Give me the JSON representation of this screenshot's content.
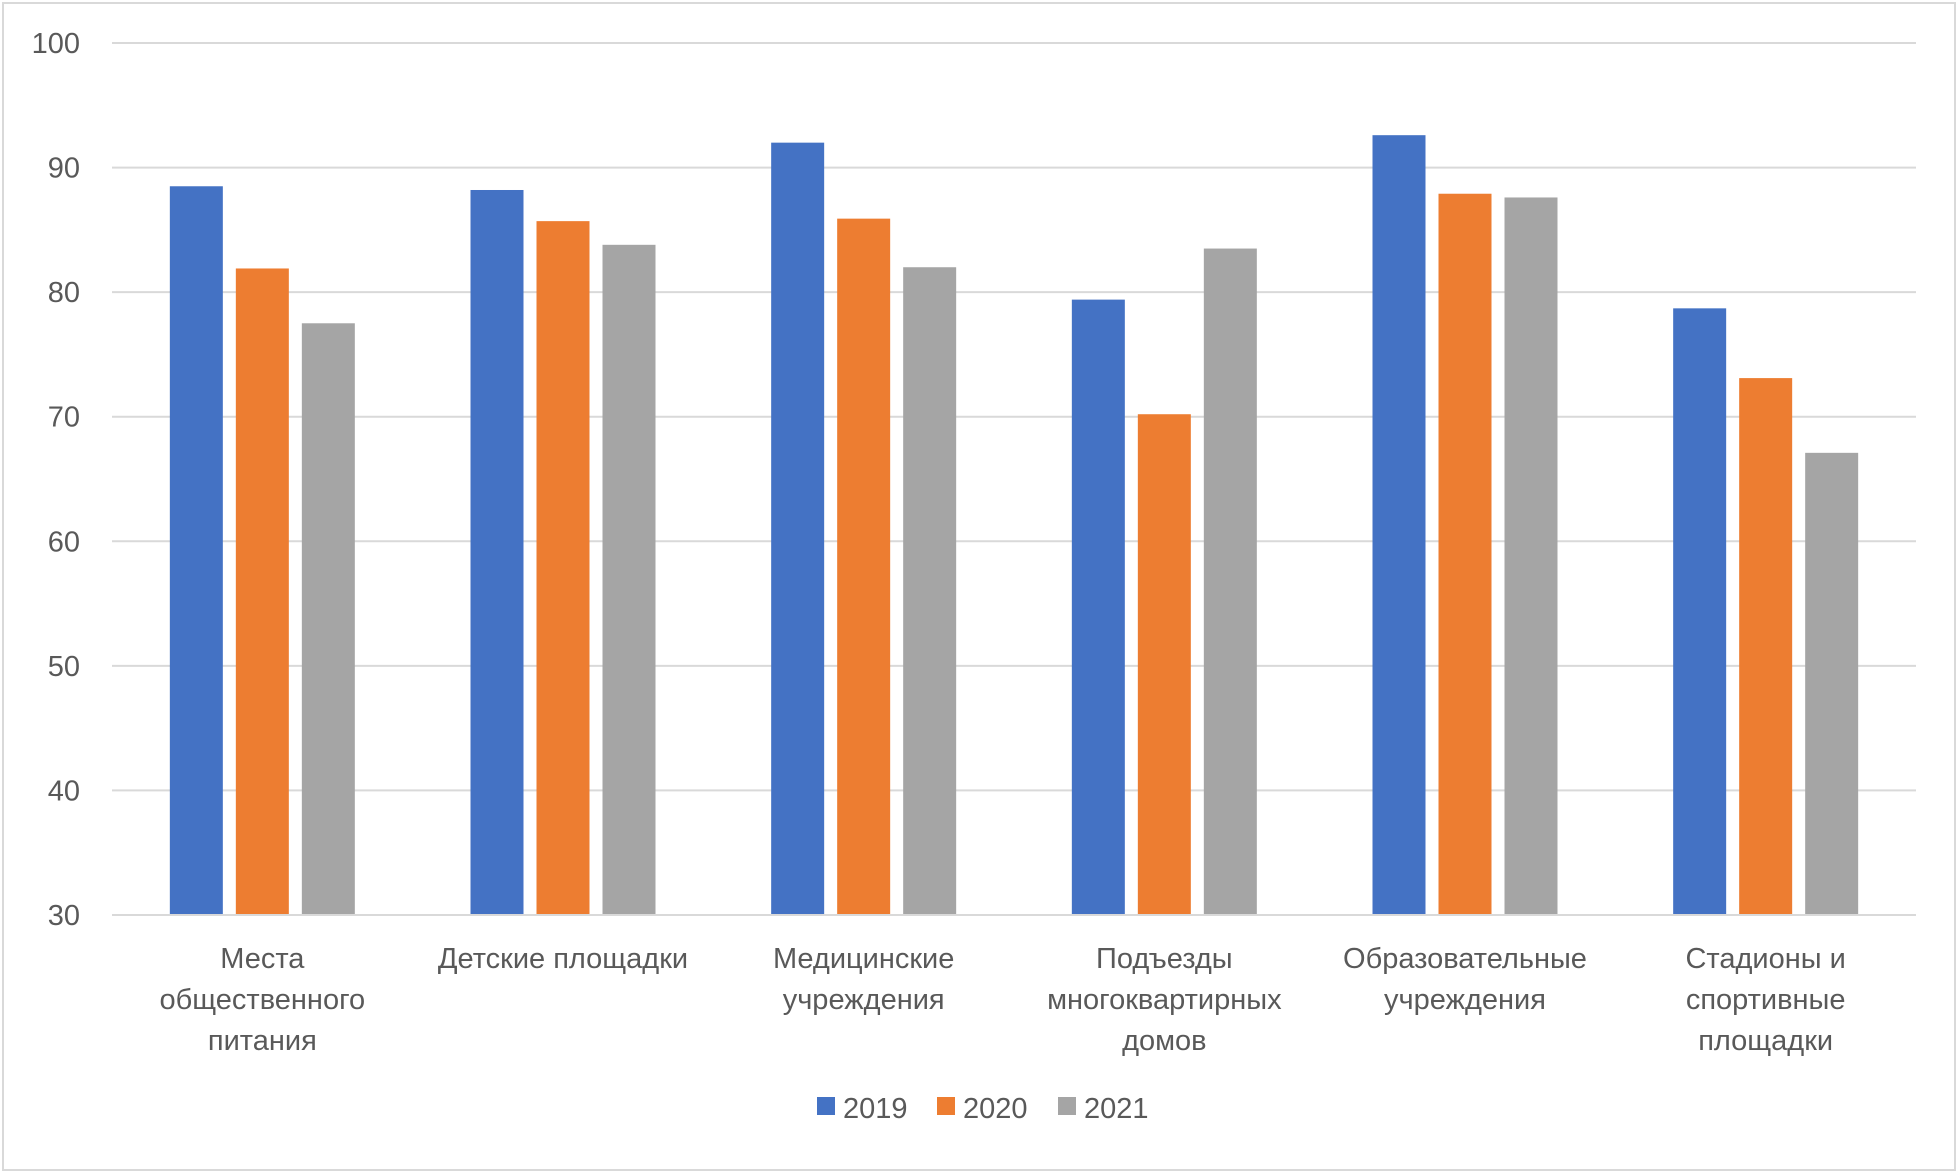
{
  "chart_data": {
    "type": "bar",
    "title": "",
    "xlabel": "",
    "ylabel": "",
    "ylim": [
      30,
      100
    ],
    "yticks": [
      30,
      40,
      50,
      60,
      70,
      80,
      90,
      100
    ],
    "grid": true,
    "legend_position": "bottom",
    "categories": [
      [
        "Места",
        "общественного",
        "питания"
      ],
      [
        "Детские площадки"
      ],
      [
        "Медицинские",
        "учреждения"
      ],
      [
        "Подъезды",
        "многоквартирных",
        "домов"
      ],
      [
        "Образовательные",
        "учреждения"
      ],
      [
        "Стадионы и",
        "спортивные",
        "площадки"
      ]
    ],
    "series": [
      {
        "name": "2019",
        "color": "#4472c4",
        "values": [
          88.5,
          88.2,
          92.0,
          79.4,
          92.6,
          78.7
        ]
      },
      {
        "name": "2020",
        "color": "#ed7d31",
        "values": [
          81.9,
          85.7,
          85.9,
          70.2,
          87.9,
          73.1
        ]
      },
      {
        "name": "2021",
        "color": "#a5a5a5",
        "values": [
          77.5,
          83.8,
          82.0,
          83.5,
          87.6,
          67.1
        ]
      }
    ]
  }
}
